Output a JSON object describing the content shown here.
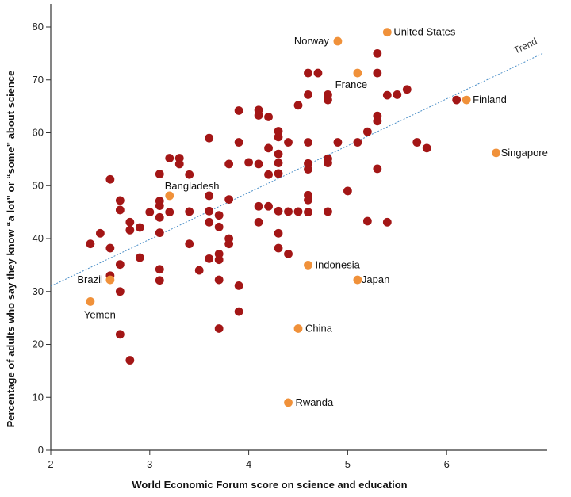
{
  "chart_data": {
    "type": "scatter",
    "title": "",
    "xlabel": "World Economic Forum score on science and education",
    "ylabel": "Percentage of adults who say they know “a lot” or “some” about science",
    "xlim": [
      2,
      7
    ],
    "ylim": [
      0,
      85
    ],
    "xticks": [
      2,
      3,
      4,
      5,
      6
    ],
    "yticks": [
      0,
      10,
      20,
      30,
      40,
      50,
      60,
      70,
      80
    ],
    "grid": false,
    "colors": {
      "other": "#a31616",
      "highlighted": "#f0913a",
      "trend": "#4b8fc8",
      "axis": "#333333"
    },
    "trend": {
      "label": "Trend",
      "x": [
        2,
        6.97
      ],
      "y": [
        31,
        75
      ]
    },
    "highlighted": [
      {
        "name": "United States",
        "x": 5.4,
        "y": 79
      },
      {
        "name": "Norway",
        "x": 4.9,
        "y": 77.3
      },
      {
        "name": "France",
        "x": 5.1,
        "y": 71.3
      },
      {
        "name": "Finland",
        "x": 6.2,
        "y": 66.2
      },
      {
        "name": "Singapore",
        "x": 6.5,
        "y": 56.2
      },
      {
        "name": "Bangladesh",
        "x": 3.2,
        "y": 48.1
      },
      {
        "name": "Indonesia",
        "x": 4.6,
        "y": 35
      },
      {
        "name": "Japan",
        "x": 5.1,
        "y": 32.2
      },
      {
        "name": "Brazil",
        "x": 2.6,
        "y": 32.2
      },
      {
        "name": "Yemen",
        "x": 2.4,
        "y": 28.1
      },
      {
        "name": "China",
        "x": 4.5,
        "y": 23
      },
      {
        "name": "Rwanda",
        "x": 4.4,
        "y": 9
      }
    ],
    "points": [
      [
        2.4,
        39
      ],
      [
        2.5,
        41
      ],
      [
        2.6,
        51.2
      ],
      [
        2.6,
        38.2
      ],
      [
        2.6,
        33
      ],
      [
        2.7,
        47.2
      ],
      [
        2.7,
        45.4
      ],
      [
        2.7,
        35.1
      ],
      [
        2.7,
        30
      ],
      [
        2.7,
        21.9
      ],
      [
        2.8,
        43.1
      ],
      [
        2.8,
        41.6
      ],
      [
        2.8,
        17
      ],
      [
        2.9,
        42.1
      ],
      [
        2.9,
        36.4
      ],
      [
        3.0,
        45
      ],
      [
        3.1,
        52.2
      ],
      [
        3.1,
        47.1
      ],
      [
        3.1,
        46.2
      ],
      [
        3.1,
        44
      ],
      [
        3.1,
        41.1
      ],
      [
        3.1,
        34.2
      ],
      [
        3.1,
        32.1
      ],
      [
        3.2,
        55.2
      ],
      [
        3.2,
        45
      ],
      [
        3.3,
        55.2
      ],
      [
        3.3,
        54.1
      ],
      [
        3.4,
        52.1
      ],
      [
        3.4,
        45.1
      ],
      [
        3.4,
        39
      ],
      [
        3.5,
        34
      ],
      [
        3.6,
        59
      ],
      [
        3.6,
        48.1
      ],
      [
        3.6,
        45.2
      ],
      [
        3.6,
        43.1
      ],
      [
        3.6,
        36.2
      ],
      [
        3.7,
        44.4
      ],
      [
        3.7,
        42.2
      ],
      [
        3.7,
        37.1
      ],
      [
        3.7,
        36
      ],
      [
        3.7,
        32.2
      ],
      [
        3.7,
        23
      ],
      [
        3.8,
        54.1
      ],
      [
        3.8,
        47.4
      ],
      [
        3.8,
        40
      ],
      [
        3.8,
        39
      ],
      [
        3.9,
        64.2
      ],
      [
        3.9,
        58.2
      ],
      [
        3.9,
        31.1
      ],
      [
        3.9,
        26.2
      ],
      [
        4.0,
        54.4
      ],
      [
        4.1,
        64.3
      ],
      [
        4.1,
        63.3
      ],
      [
        4.1,
        54.1
      ],
      [
        4.1,
        46.1
      ],
      [
        4.1,
        43.1
      ],
      [
        4.2,
        63
      ],
      [
        4.2,
        57.1
      ],
      [
        4.2,
        52.1
      ],
      [
        4.2,
        46.1
      ],
      [
        4.3,
        60.3
      ],
      [
        4.3,
        59.2
      ],
      [
        4.3,
        56
      ],
      [
        4.3,
        54.3
      ],
      [
        4.3,
        52.3
      ],
      [
        4.3,
        45.2
      ],
      [
        4.3,
        41
      ],
      [
        4.3,
        38.2
      ],
      [
        4.4,
        58.2
      ],
      [
        4.4,
        45.1
      ],
      [
        4.4,
        37.1
      ],
      [
        4.5,
        65.2
      ],
      [
        4.5,
        45.1
      ],
      [
        4.6,
        71.3
      ],
      [
        4.6,
        67.2
      ],
      [
        4.6,
        58.2
      ],
      [
        4.6,
        54.2
      ],
      [
        4.6,
        53.1
      ],
      [
        4.6,
        48.2
      ],
      [
        4.6,
        47.3
      ],
      [
        4.6,
        45
      ],
      [
        4.7,
        71.3
      ],
      [
        4.8,
        67.2
      ],
      [
        4.8,
        66.2
      ],
      [
        4.8,
        55.1
      ],
      [
        4.8,
        54.3
      ],
      [
        4.8,
        45.1
      ],
      [
        4.9,
        58.2
      ],
      [
        5.0,
        49
      ],
      [
        5.1,
        58.2
      ],
      [
        5.2,
        60.2
      ],
      [
        5.2,
        43.3
      ],
      [
        5.3,
        75
      ],
      [
        5.3,
        71.3
      ],
      [
        5.3,
        63.2
      ],
      [
        5.3,
        62.2
      ],
      [
        5.3,
        53.2
      ],
      [
        5.4,
        67.1
      ],
      [
        5.4,
        43.1
      ],
      [
        5.5,
        67.2
      ],
      [
        5.6,
        68.2
      ],
      [
        5.7,
        58.2
      ],
      [
        5.8,
        57.1
      ],
      [
        6.1,
        66.2
      ]
    ]
  }
}
